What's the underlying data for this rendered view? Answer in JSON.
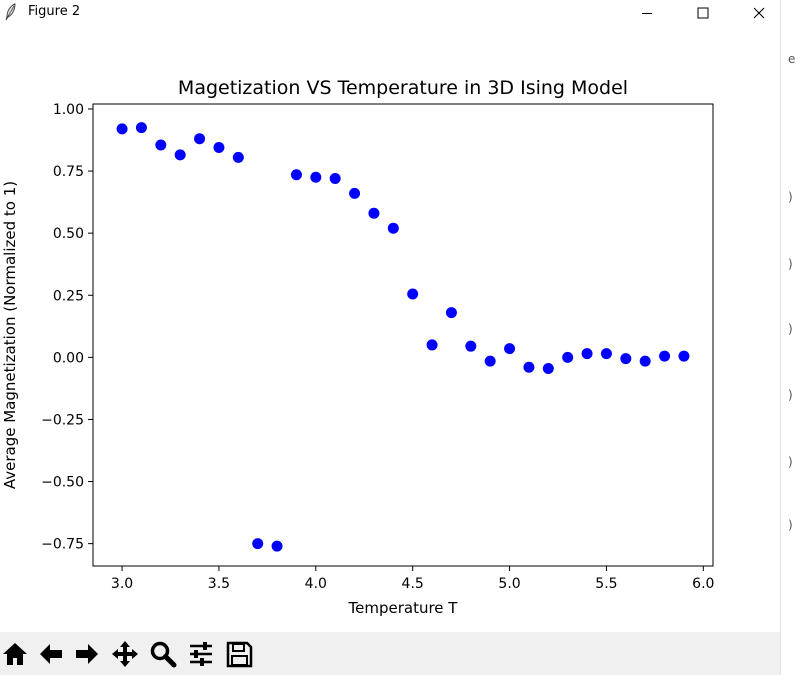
{
  "window": {
    "title": "Figure 2",
    "icons": {
      "app": "feather-icon",
      "minimize": "minimize-icon",
      "maximize": "maximize-icon",
      "close": "close-icon"
    }
  },
  "background": {
    "strip_glyphs": [
      "e",
      ")",
      ")",
      ")",
      ")",
      ")",
      ")"
    ]
  },
  "toolbar": {
    "buttons": [
      {
        "name": "home-icon"
      },
      {
        "name": "back-arrow-icon"
      },
      {
        "name": "forward-arrow-icon"
      },
      {
        "name": "pan-icon"
      },
      {
        "name": "zoom-icon"
      },
      {
        "name": "configure-subplots-icon"
      },
      {
        "name": "save-icon"
      }
    ]
  },
  "chart_data": {
    "type": "scatter",
    "title": "Magetization VS Temperature in 3D Ising Model",
    "xlabel": "Temperature T",
    "ylabel": "Average Magnetization (Normalized to 1)",
    "xlim": [
      2.85,
      6.05
    ],
    "ylim": [
      -0.84,
      1.02
    ],
    "xticks": [
      "3.0",
      "3.5",
      "4.0",
      "4.5",
      "5.0",
      "5.5",
      "6.0"
    ],
    "yticks": [
      "1.00",
      "0.75",
      "0.50",
      "0.25",
      "0.00",
      "−0.25",
      "−0.50",
      "−0.75"
    ],
    "grid": false,
    "marker_color": "#0000ff",
    "series": [
      {
        "x": [
          3.0,
          3.1,
          3.2,
          3.3,
          3.4,
          3.5,
          3.6,
          3.7,
          3.8,
          3.9,
          4.0,
          4.1,
          4.2,
          4.3,
          4.4,
          4.5,
          4.6,
          4.7,
          4.8,
          4.9,
          5.0,
          5.1,
          5.2,
          5.3,
          5.4,
          5.5,
          5.6,
          5.7,
          5.8,
          5.9
        ],
        "y": [
          0.92,
          0.925,
          0.855,
          0.815,
          0.88,
          0.845,
          0.805,
          -0.75,
          -0.76,
          0.735,
          0.725,
          0.72,
          0.66,
          0.58,
          0.52,
          0.255,
          0.05,
          0.18,
          0.045,
          -0.015,
          0.035,
          -0.04,
          -0.045,
          0.0,
          0.015,
          0.015,
          -0.005,
          -0.015,
          0.005,
          0.005
        ]
      }
    ]
  }
}
